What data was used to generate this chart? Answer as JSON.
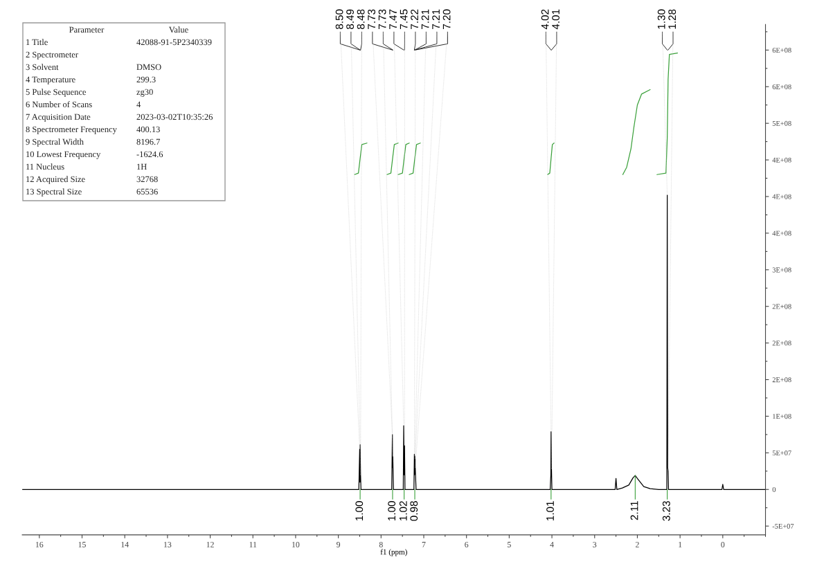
{
  "chart_data": {
    "type": "line",
    "xlabel": "f1 (ppm)",
    "xlim": [
      16.4,
      -1.0
    ],
    "xticks": [
      16,
      15,
      14,
      13,
      12,
      11,
      10,
      9,
      8,
      7,
      6,
      5,
      4,
      3,
      2,
      1,
      0
    ],
    "ylim": [
      -62000000,
      635000000
    ],
    "yticks": [
      {
        "value": -50000000,
        "label": "-5E+07"
      },
      0,
      {
        "value": 50000000,
        "label": "5E+07"
      },
      {
        "value": 100000000,
        "label": "1E+08"
      },
      {
        "value": 150000000,
        "label": "2E+08"
      },
      {
        "value": 200000000,
        "label": "2E+08"
      },
      {
        "value": 250000000,
        "label": "2E+08"
      },
      {
        "value": 300000000,
        "label": "3E+08"
      },
      {
        "value": 350000000,
        "label": "4E+08"
      },
      {
        "value": 400000000,
        "label": "4E+08"
      },
      {
        "value": 450000000,
        "label": "4E+08"
      },
      {
        "value": 500000000,
        "label": "5E+08"
      },
      {
        "value": 550000000,
        "label": "6E+08"
      },
      {
        "value": 600000000,
        "label": "6E+08"
      }
    ],
    "series": [
      {
        "color": "#000000",
        "x": [
          16.4,
          8.52,
          8.5,
          8.495,
          8.49,
          8.48,
          8.47,
          7.75,
          7.735,
          7.73,
          7.725,
          7.71,
          7.48,
          7.47,
          7.46,
          7.45,
          7.44,
          7.23,
          7.22,
          7.215,
          7.21,
          7.205,
          7.2,
          7.18,
          4.04,
          4.025,
          4.02,
          4.01,
          4.0,
          2.52,
          2.5,
          2.48,
          2.35,
          2.2,
          2.1,
          2.05,
          2.0,
          1.85,
          1.7,
          1.5,
          1.31,
          1.3,
          1.29,
          1.28,
          1.27,
          0.02,
          0.0,
          -0.02,
          -1.0
        ],
        "values": [
          0,
          0,
          55000000,
          10000000,
          61000000,
          20000000,
          0,
          0,
          75000000,
          30000000,
          45000000,
          0,
          0,
          87000000,
          20000000,
          60000000,
          0,
          0,
          48000000,
          20000000,
          46000000,
          42000000,
          30000000,
          0,
          0,
          20000000,
          79000000,
          27000000,
          0,
          0,
          15000000,
          0,
          2000000,
          6000000,
          16000000,
          19000000,
          15000000,
          4000000,
          1000000,
          0,
          0,
          402000000,
          30000000,
          25000000,
          0,
          0,
          7000000,
          0,
          0
        ]
      },
      {
        "color": "#3aa03a",
        "x": [
          8.62,
          8.53,
          8.49,
          8.45,
          8.33
        ],
        "values": [
          430000000,
          432000000,
          452000000,
          471000000,
          473000000
        ]
      },
      {
        "color": "#3aa03a",
        "x": [
          7.86,
          7.77,
          7.73,
          7.69,
          7.6
        ],
        "values": [
          430000000,
          432000000,
          452000000,
          471000000,
          473000000
        ]
      },
      {
        "color": "#3aa03a",
        "x": [
          7.6,
          7.5,
          7.46,
          7.42,
          7.34
        ],
        "values": [
          430000000,
          432000000,
          452000000,
          471000000,
          473000000
        ]
      },
      {
        "color": "#3aa03a",
        "x": [
          7.34,
          7.25,
          7.21,
          7.17,
          7.08
        ],
        "values": [
          430000000,
          432000000,
          452000000,
          471000000,
          473000000
        ]
      },
      {
        "color": "#3aa03a",
        "x": [
          4.1,
          4.05,
          4.02,
          3.99,
          3.95
        ],
        "values": [
          430000000,
          432000000,
          452000000,
          471000000,
          473000000
        ]
      },
      {
        "color": "#3aa03a",
        "x": [
          2.34,
          2.25,
          2.15,
          2.08,
          2.0,
          1.9,
          1.7
        ],
        "values": [
          430000000,
          440000000,
          465000000,
          495000000,
          525000000,
          540000000,
          546000000
        ]
      },
      {
        "color": "#3aa03a",
        "x": [
          1.54,
          1.33,
          1.3,
          1.28,
          1.25,
          1.06
        ],
        "values": [
          430000000,
          432000000,
          480000000,
          560000000,
          594000000,
          596000000
        ]
      }
    ],
    "annotations": [
      "Parameter\tValue",
      "1 Title\t42088-91-5P2340339",
      "2 Spectrometer",
      "3 Solvent\tDMSO",
      "4 Temperature\t299.3",
      "5 Pulse Sequence\tzg30",
      "6 Number of Scans\t4",
      "7 Acquisition Date\t2023-03-02T10:35:26",
      "8 Spectrometer Frequency\t400.13",
      "9 Spectral Width\t8196.7",
      "10 Lowest Frequency\t-1624.6",
      "11 Nucleus\t1H",
      "12 Acquired Size\t32768",
      "13 Spectral Size\t65536",
      {
        "text": "8.50",
        "x": 8.5,
        "y": 55000000
      },
      {
        "text": "8.49",
        "x": 8.49,
        "y": 61000000
      },
      {
        "text": "8.48",
        "x": 8.48,
        "y": 20000000
      },
      {
        "text": "7.73",
        "x": 7.735,
        "y": 75000000
      },
      {
        "text": "7.73",
        "x": 7.725,
        "y": 45000000
      },
      {
        "text": "7.47",
        "x": 7.47,
        "y": 87000000
      },
      {
        "text": "7.45",
        "x": 7.45,
        "y": 60000000
      },
      {
        "text": "7.22",
        "x": 7.22,
        "y": 48000000
      },
      {
        "text": "7.21",
        "x": 7.21,
        "y": 46000000
      },
      {
        "text": "7.21",
        "x": 7.205,
        "y": 42000000
      },
      {
        "text": "7.20",
        "x": 7.2,
        "y": 30000000
      },
      {
        "text": "4.02",
        "x": 4.02,
        "y": 79000000
      },
      {
        "text": "4.01",
        "x": 4.01,
        "y": 27000000
      },
      {
        "text": "1.30",
        "x": 1.3,
        "y": 402000000
      },
      {
        "text": "1.28",
        "x": 1.28,
        "y": 25000000
      },
      {
        "text": "1.00",
        "x": 8.49,
        "y": 0
      },
      {
        "text": "1.00",
        "x": 7.73,
        "y": 0
      },
      {
        "text": "1.02",
        "x": 7.46,
        "y": 0
      },
      {
        "text": "0.98",
        "x": 7.21,
        "y": 0
      },
      {
        "text": "1.01",
        "x": 4.02,
        "y": 0
      },
      {
        "text": "2.11",
        "x": 2.05,
        "y": 19000000
      },
      {
        "text": "3.23",
        "x": 1.3,
        "y": 0
      }
    ]
  }
}
